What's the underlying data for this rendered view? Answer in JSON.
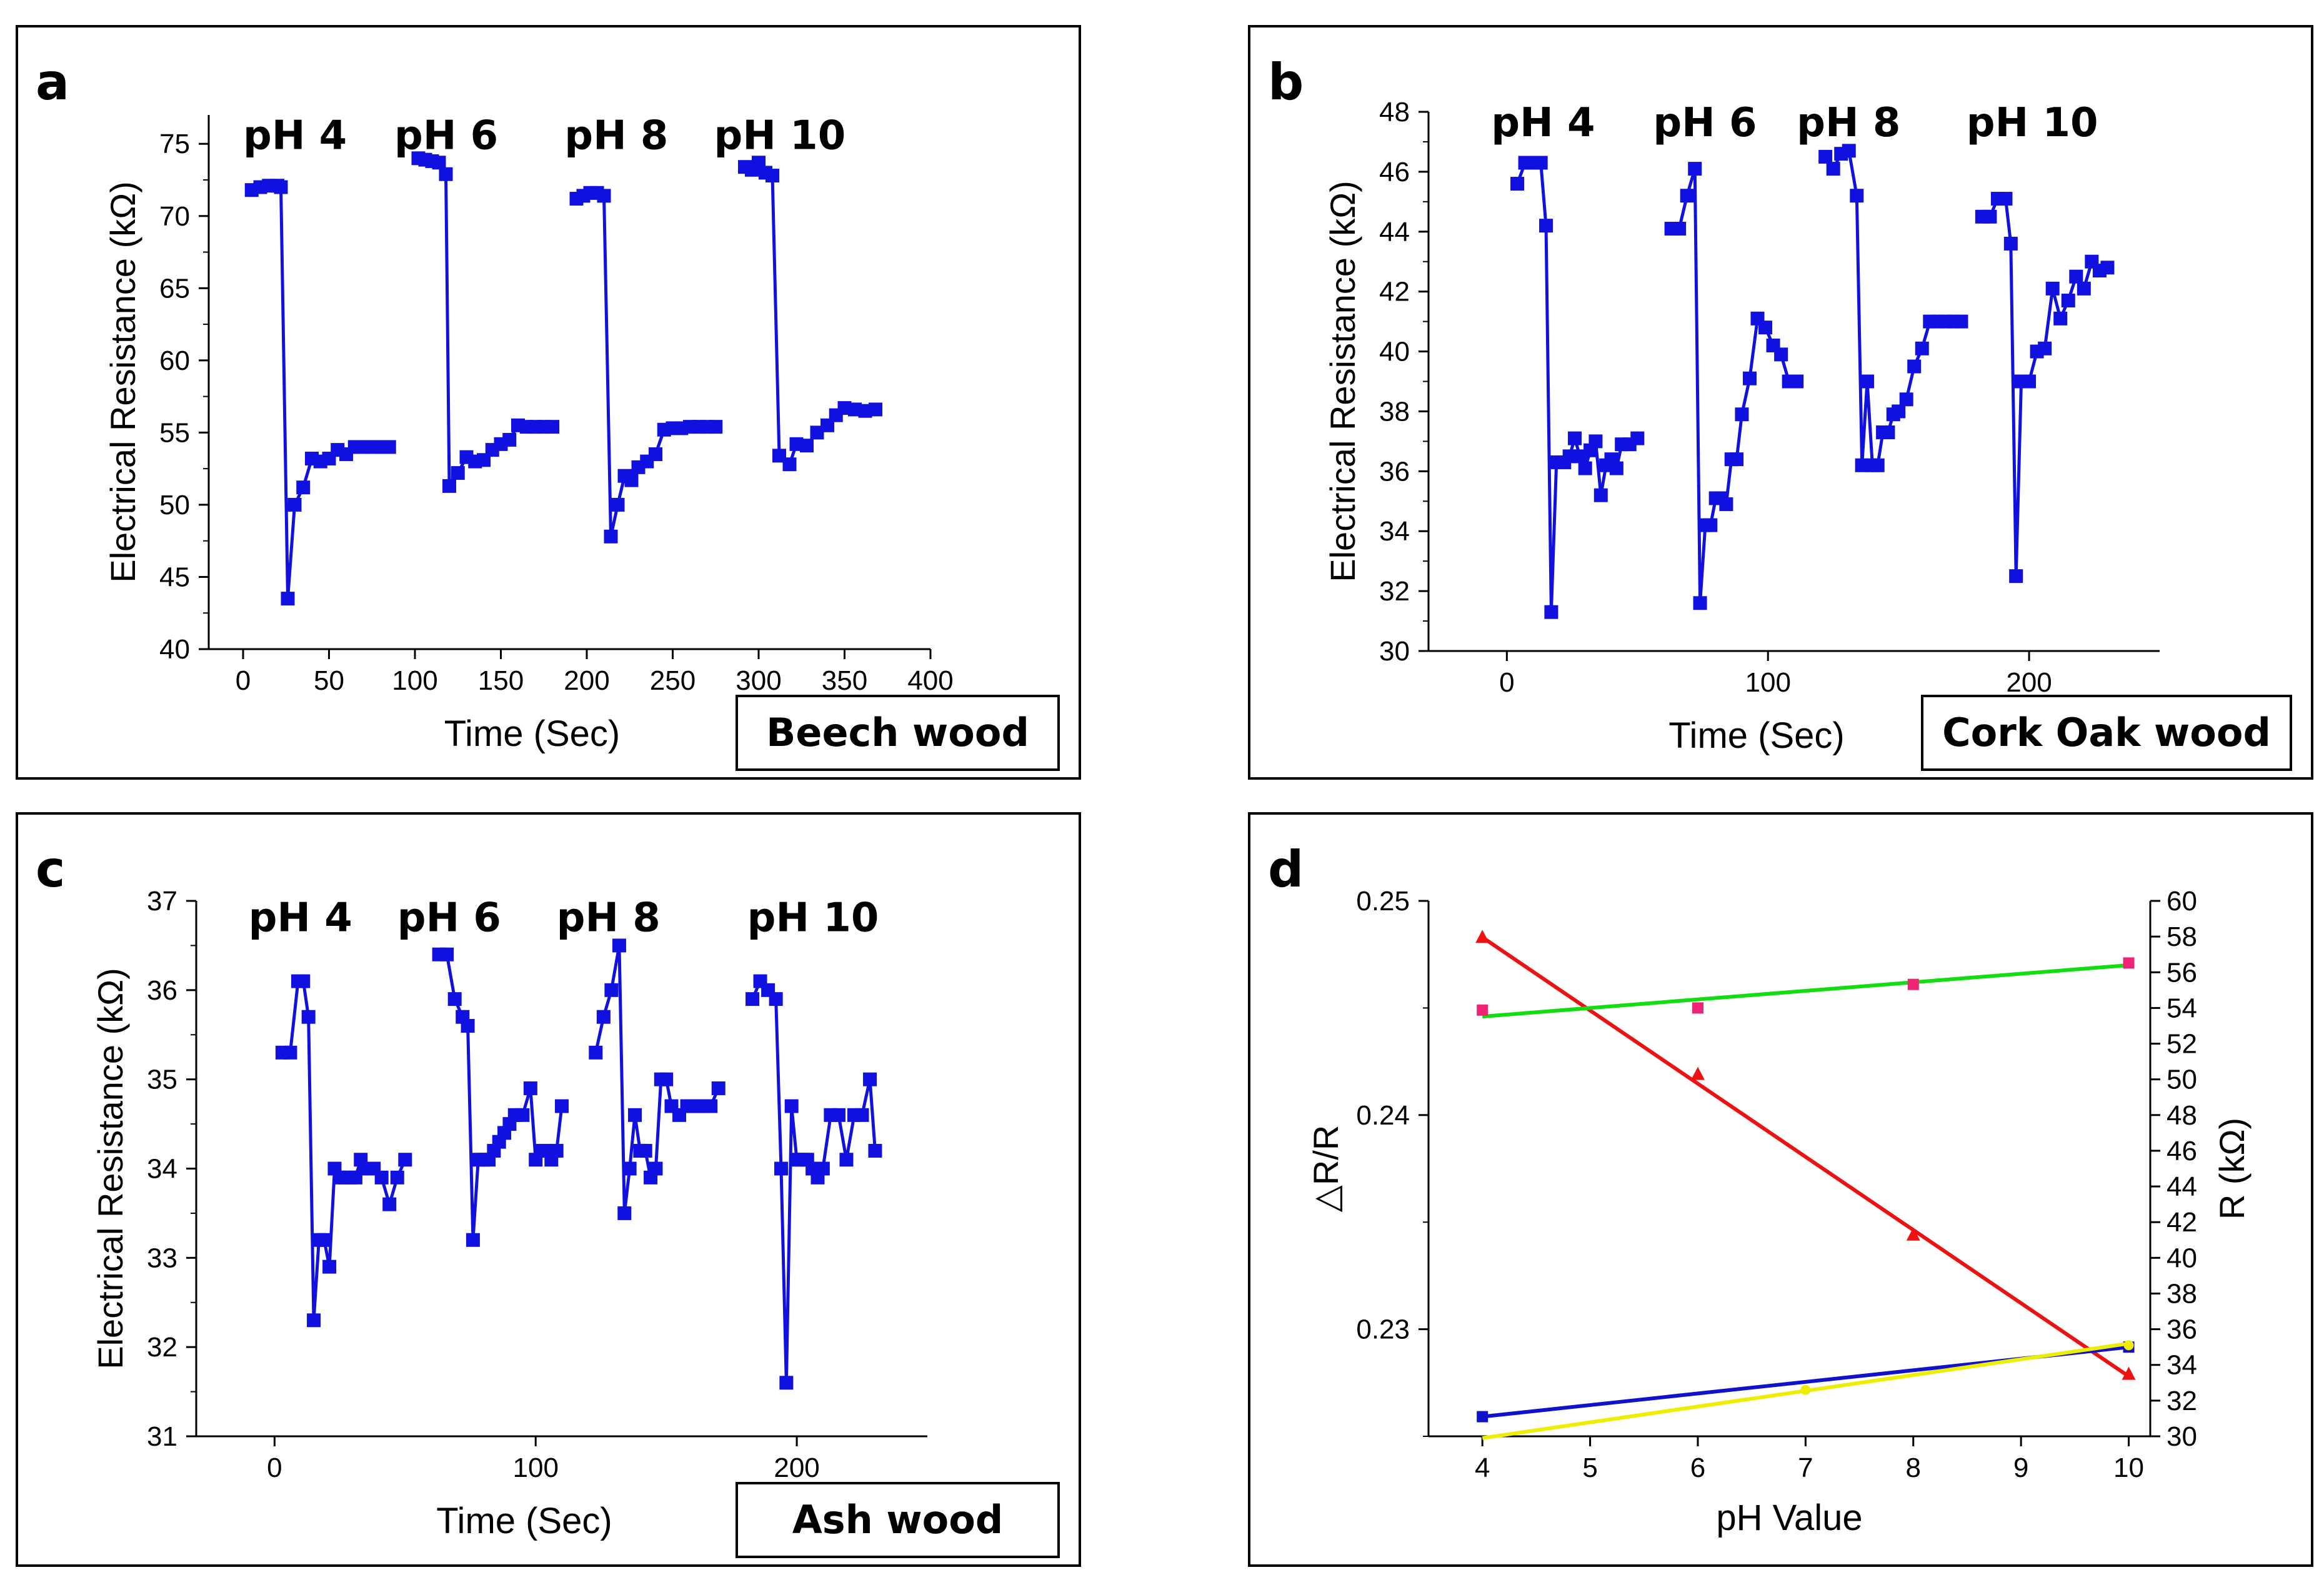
{
  "chart_data": [
    {
      "type": "line",
      "panel_label": "a",
      "material": "Beech wood",
      "xlabel": "Time (Sec)",
      "ylabel": "Electrical Resistance (kΩ)",
      "xlim": [
        -20,
        400
      ],
      "ylim": [
        40,
        77
      ],
      "xticks": [
        0,
        50,
        100,
        150,
        200,
        250,
        300,
        350,
        400
      ],
      "yticks": [
        40,
        45,
        50,
        55,
        60,
        65,
        70,
        75
      ],
      "series_color": "#1010e0",
      "ph_labels": [
        {
          "text": "pH 4",
          "x": 0,
          "y": 75.5
        },
        {
          "text": "pH 6",
          "x": 88,
          "y": 75.5
        },
        {
          "text": "pH 8",
          "x": 187,
          "y": 75.5
        },
        {
          "text": "pH 10",
          "x": 274,
          "y": 75.5
        }
      ],
      "series": [
        {
          "name": "pH 4",
          "x": [
            5,
            10,
            15,
            20,
            22,
            26,
            30,
            35,
            40,
            45,
            50,
            55,
            60,
            65,
            70,
            75,
            80,
            85
          ],
          "y": [
            71.8,
            72.0,
            72.1,
            72.1,
            72.0,
            43.5,
            50.0,
            51.2,
            53.2,
            53.0,
            53.2,
            53.8,
            53.5,
            54.0,
            54.0,
            54.0,
            54.0,
            54.0
          ]
        },
        {
          "name": "pH 6",
          "x": [
            102,
            106,
            110,
            114,
            118,
            120,
            125,
            130,
            135,
            140,
            145,
            150,
            155,
            160,
            165,
            170,
            175,
            180
          ],
          "y": [
            74.0,
            73.9,
            73.8,
            73.7,
            72.9,
            51.3,
            52.2,
            53.3,
            53.0,
            53.1,
            53.8,
            54.2,
            54.5,
            55.5,
            55.4,
            55.4,
            55.4,
            55.4
          ]
        },
        {
          "name": "pH 8",
          "x": [
            194,
            198,
            202,
            206,
            210,
            214,
            218,
            222,
            226,
            230,
            235,
            240,
            245,
            250,
            255,
            260,
            265,
            270,
            275
          ],
          "y": [
            71.2,
            71.4,
            71.6,
            71.6,
            71.4,
            47.8,
            50.0,
            52.0,
            51.7,
            52.6,
            53.0,
            53.5,
            55.2,
            55.3,
            55.3,
            55.4,
            55.4,
            55.4,
            55.4
          ]
        },
        {
          "name": "pH 10",
          "x": [
            292,
            296,
            300,
            304,
            308,
            312,
            318,
            322,
            328,
            334,
            340,
            345,
            350,
            356,
            362,
            368
          ],
          "y": [
            73.4,
            73.2,
            73.7,
            73.0,
            72.8,
            53.4,
            52.8,
            54.2,
            54.1,
            55.0,
            55.5,
            56.2,
            56.7,
            56.6,
            56.5,
            56.6
          ]
        }
      ]
    },
    {
      "type": "line",
      "panel_label": "b",
      "material": "Cork Oak wood",
      "xlabel": "Time (Sec)",
      "ylabel": "Electrical Resistance (kΩ)",
      "xlim": [
        -30,
        250
      ],
      "ylim": [
        30,
        48
      ],
      "xticks": [
        0,
        100,
        200
      ],
      "yticks": [
        30,
        32,
        34,
        36,
        38,
        40,
        42,
        44,
        46,
        48
      ],
      "series_color": "#1010e0",
      "ph_labels": [
        {
          "text": "pH 4",
          "x": -6,
          "y": 47.6
        },
        {
          "text": "pH 6",
          "x": 56,
          "y": 47.6
        },
        {
          "text": "pH 8",
          "x": 111,
          "y": 47.6
        },
        {
          "text": "pH 10",
          "x": 176,
          "y": 47.6
        }
      ],
      "series": [
        {
          "name": "pH 4",
          "x": [
            4,
            7,
            10,
            13,
            15,
            17,
            19,
            22,
            24,
            26,
            28,
            30,
            32,
            34,
            36,
            38,
            40,
            42,
            44,
            47,
            50
          ],
          "y": [
            45.6,
            46.3,
            46.3,
            46.3,
            44.2,
            31.3,
            36.3,
            36.3,
            36.5,
            37.1,
            36.5,
            36.1,
            36.7,
            37.0,
            35.2,
            36.2,
            36.4,
            36.1,
            36.9,
            36.9,
            37.1
          ]
        },
        {
          "name": "pH 6",
          "x": [
            63,
            66,
            69,
            72,
            74,
            76,
            78,
            80,
            82,
            84,
            86,
            88,
            90,
            93,
            96,
            99,
            102,
            105,
            108,
            111
          ],
          "y": [
            44.1,
            44.1,
            45.2,
            46.1,
            31.6,
            34.2,
            34.2,
            35.1,
            35.1,
            34.9,
            36.4,
            36.4,
            37.9,
            39.1,
            41.1,
            40.8,
            40.2,
            39.9,
            39.0,
            39.0
          ]
        },
        {
          "name": "pH 8",
          "x": [
            122,
            125,
            128,
            131,
            134,
            136,
            138,
            140,
            142,
            144,
            146,
            148,
            150,
            153,
            156,
            159,
            162,
            165,
            168,
            171,
            174
          ],
          "y": [
            46.5,
            46.1,
            46.6,
            46.7,
            45.2,
            36.2,
            39.0,
            36.2,
            36.2,
            37.3,
            37.3,
            37.9,
            38.0,
            38.4,
            39.5,
            40.1,
            41.0,
            41.0,
            41.0,
            41.0,
            41.0
          ]
        },
        {
          "name": "pH 10",
          "x": [
            182,
            185,
            188,
            191,
            193,
            195,
            197,
            200,
            203,
            206,
            209,
            212,
            215,
            218,
            221,
            224,
            227,
            230
          ],
          "y": [
            44.5,
            44.5,
            45.1,
            45.1,
            43.6,
            32.5,
            39.0,
            39.0,
            40.0,
            40.1,
            42.1,
            41.1,
            41.7,
            42.5,
            42.1,
            43.0,
            42.7,
            42.8
          ]
        }
      ]
    },
    {
      "type": "line",
      "panel_label": "c",
      "material": "Ash wood",
      "xlabel": "Time (Sec)",
      "ylabel": "Electrical Resistance (kΩ)",
      "xlim": [
        -30,
        250
      ],
      "ylim": [
        31,
        37
      ],
      "xticks": [
        0,
        100,
        200
      ],
      "yticks": [
        31,
        32,
        33,
        34,
        35,
        36,
        37
      ],
      "series_color": "#1010e0",
      "ph_labels": [
        {
          "text": "pH 4",
          "x": -10,
          "y": 36.8
        },
        {
          "text": "pH 6",
          "x": 47,
          "y": 36.8
        },
        {
          "text": "pH 8",
          "x": 108,
          "y": 36.8
        },
        {
          "text": "pH 10",
          "x": 181,
          "y": 36.8
        }
      ],
      "series": [
        {
          "name": "pH 4",
          "x": [
            3,
            6,
            9,
            11,
            13,
            15,
            17,
            19,
            21,
            23,
            25,
            27,
            29,
            31,
            33,
            35,
            38,
            41,
            44,
            47,
            50
          ],
          "y": [
            35.3,
            35.3,
            36.1,
            36.1,
            35.7,
            32.3,
            33.2,
            33.2,
            32.9,
            34.0,
            33.9,
            33.9,
            33.9,
            33.9,
            34.1,
            34.0,
            34.0,
            33.9,
            33.6,
            33.9,
            34.1
          ]
        },
        {
          "name": "pH 6",
          "x": [
            63,
            66,
            69,
            72,
            74,
            76,
            78,
            80,
            82,
            84,
            86,
            88,
            90,
            92,
            95,
            98,
            100,
            102,
            104,
            106,
            108,
            110
          ],
          "y": [
            36.4,
            36.4,
            35.9,
            35.7,
            35.6,
            33.2,
            34.1,
            34.1,
            34.1,
            34.2,
            34.3,
            34.4,
            34.5,
            34.6,
            34.6,
            34.9,
            34.1,
            34.2,
            34.2,
            34.1,
            34.2,
            34.7
          ]
        },
        {
          "name": "pH 8",
          "x": [
            123,
            126,
            129,
            132,
            134,
            136,
            138,
            140,
            142,
            144,
            146,
            148,
            150,
            152,
            155,
            158,
            161,
            164,
            167,
            170
          ],
          "y": [
            35.3,
            35.7,
            36.0,
            36.5,
            33.5,
            34.0,
            34.6,
            34.2,
            34.2,
            33.9,
            34.0,
            35.0,
            35.0,
            34.7,
            34.6,
            34.7,
            34.7,
            34.7,
            34.7,
            34.9
          ]
        },
        {
          "name": "pH 10",
          "x": [
            183,
            186,
            189,
            192,
            194,
            196,
            198,
            200,
            202,
            204,
            206,
            208,
            210,
            213,
            216,
            219,
            222,
            225,
            228,
            230
          ],
          "y": [
            35.9,
            36.1,
            36.0,
            35.9,
            34.0,
            31.6,
            34.7,
            34.1,
            34.1,
            34.1,
            34.0,
            33.9,
            34.0,
            34.6,
            34.6,
            34.1,
            34.6,
            34.6,
            35.0,
            34.2
          ]
        }
      ]
    },
    {
      "type": "scatter",
      "panel_label": "d",
      "xlabel": "pH Value",
      "ylabel_left": "△R/R",
      "ylabel_right": "R (kΩ)",
      "xlim": [
        3.5,
        10.2
      ],
      "ylim_left": [
        0.225,
        0.25
      ],
      "ylim_right": [
        30,
        60
      ],
      "xticks": [
        4,
        5,
        6,
        7,
        8,
        9,
        10
      ],
      "yticks_left": [
        0.23,
        0.24,
        0.25
      ],
      "yticks_right": [
        30,
        32,
        34,
        36,
        38,
        40,
        42,
        44,
        46,
        48,
        50,
        52,
        54,
        56,
        58,
        60
      ],
      "series": [
        {
          "name": "red",
          "color": "#ee1111",
          "marker": "triangle",
          "axis": "left",
          "x": [
            4,
            6,
            8,
            10
          ],
          "y": [
            0.2483,
            0.2419,
            0.2344,
            0.2279
          ],
          "fit": [
            [
              4,
              0.2483
            ],
            [
              10,
              0.2278
            ]
          ]
        },
        {
          "name": "green",
          "color": "#11dd11",
          "marker": "square",
          "axis": "left",
          "x": [
            4,
            6,
            8,
            10
          ],
          "y": [
            0.2449,
            0.245,
            0.2461,
            0.2471
          ],
          "point_color": "#ee2277",
          "fit": [
            [
              4,
              0.2446
            ],
            [
              10,
              0.247
            ]
          ]
        },
        {
          "name": "blue",
          "color": "#1111cc",
          "marker": "square",
          "axis": "right",
          "x": [
            4,
            10
          ],
          "y": [
            31.1,
            35.0
          ],
          "fit": [
            [
              4,
              31.1
            ],
            [
              10,
              35.0
            ]
          ]
        },
        {
          "name": "yellow",
          "color": "#eeee00",
          "marker": "circle",
          "axis": "right",
          "x": [
            7,
            10
          ],
          "y": [
            32.6,
            35.1
          ],
          "fit": [
            [
              4,
              29.9
            ],
            [
              10,
              35.2
            ]
          ]
        }
      ]
    }
  ]
}
